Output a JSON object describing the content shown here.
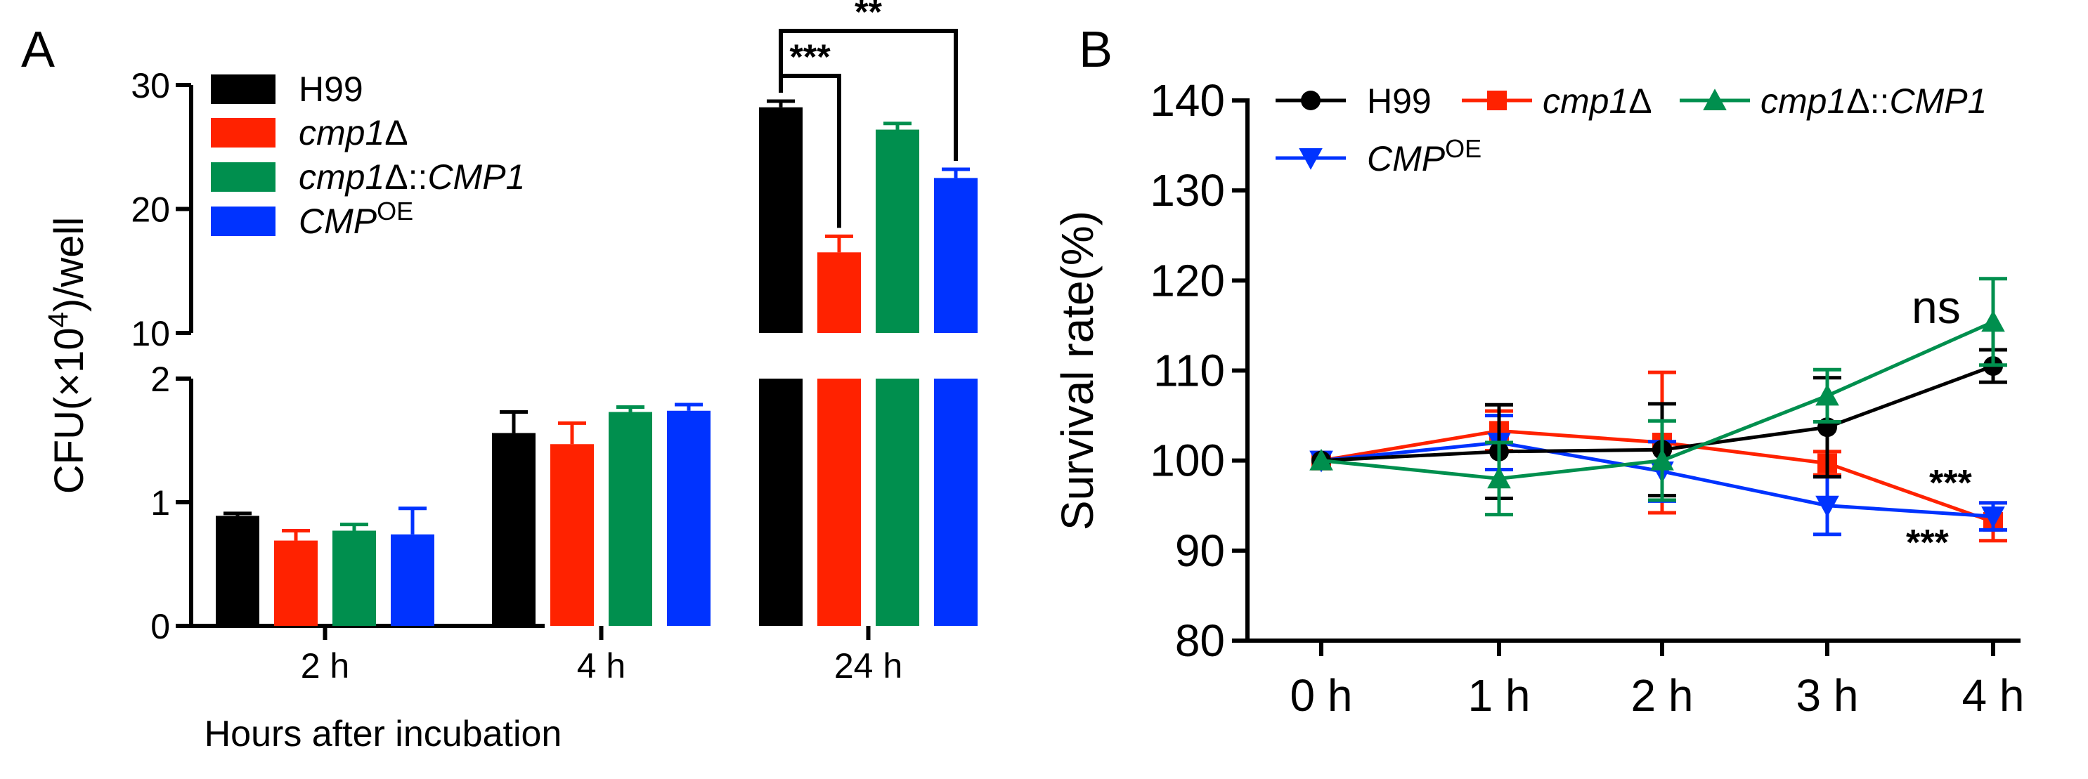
{
  "panel_labels": {
    "a": "A",
    "b": "B"
  },
  "colors": {
    "H99": "#000000",
    "cmp1d": "#ff2200",
    "cmp1d_CMP1": "#008f4e",
    "CMPOE": "#0033ff"
  },
  "chart_data": [
    {
      "type": "bar",
      "panel": "A",
      "xlabel": "Hours after incubation",
      "ylabel": {
        "pre": "CFU(×10",
        "sup": "4",
        "post": ")/well"
      },
      "categories": [
        "2 h",
        "4 h",
        "24 h"
      ],
      "axis_break": {
        "lower": [
          0,
          2
        ],
        "upper": [
          10,
          30
        ]
      },
      "yticks_lower": [
        "0",
        "1",
        "2"
      ],
      "yticks_upper": [
        "10",
        "20",
        "30"
      ],
      "legend": [
        {
          "key": "H99",
          "parts": [
            {
              "t": "H99",
              "i": false
            }
          ]
        },
        {
          "key": "cmp1d",
          "parts": [
            {
              "t": "cmp1",
              "i": true
            },
            {
              "t": "Δ",
              "i": false
            }
          ]
        },
        {
          "key": "cmp1d_CMP1",
          "parts": [
            {
              "t": "cmp1",
              "i": true
            },
            {
              "t": "Δ::",
              "i": false
            },
            {
              "t": "CMP1",
              "i": true
            }
          ]
        },
        {
          "key": "CMPOE",
          "parts": [
            {
              "t": "CMP",
              "i": true
            }
          ],
          "sup": "OE"
        }
      ],
      "series": [
        {
          "key": "H99",
          "values": [
            0.89,
            1.56,
            28.2
          ],
          "errors": [
            0.02,
            0.17,
            0.5
          ]
        },
        {
          "key": "cmp1d",
          "values": [
            0.69,
            1.47,
            16.5
          ],
          "errors": [
            0.08,
            0.17,
            1.3
          ]
        },
        {
          "key": "cmp1d_CMP1",
          "values": [
            0.77,
            1.73,
            26.4
          ],
          "errors": [
            0.05,
            0.04,
            0.5
          ]
        },
        {
          "key": "CMPOE",
          "values": [
            0.74,
            1.74,
            22.5
          ],
          "errors": [
            0.21,
            0.05,
            0.7
          ]
        }
      ],
      "significance": [
        {
          "label": "***",
          "color": "#ff2200",
          "from": "H99",
          "to": "cmp1d",
          "category": "24 h"
        },
        {
          "label": "**",
          "color": "#0033ff",
          "from": "H99",
          "to": "CMPOE",
          "category": "24 h"
        }
      ]
    },
    {
      "type": "line",
      "panel": "B",
      "ylabel": "Survival rate(%)",
      "x": [
        "0 h",
        "1 h",
        "2 h",
        "3 h",
        "4 h"
      ],
      "ylim": [
        80,
        140
      ],
      "yticks": [
        80,
        90,
        100,
        110,
        120,
        130,
        140
      ],
      "legend": [
        {
          "key": "H99",
          "marker": "circle",
          "parts": [
            {
              "t": "H99",
              "i": false
            }
          ]
        },
        {
          "key": "cmp1d",
          "marker": "square",
          "parts": [
            {
              "t": "cmp1",
              "i": true
            },
            {
              "t": "Δ",
              "i": false
            }
          ]
        },
        {
          "key": "cmp1d_CMP1",
          "marker": "triangle-up",
          "parts": [
            {
              "t": "cmp1",
              "i": true
            },
            {
              "t": "Δ::",
              "i": false
            },
            {
              "t": "CMP1",
              "i": true
            }
          ]
        },
        {
          "key": "CMPOE",
          "marker": "triangle-down",
          "parts": [
            {
              "t": "CMP",
              "i": true
            }
          ],
          "sup": "OE"
        }
      ],
      "series": [
        {
          "key": "H99",
          "marker": "circle",
          "values": [
            100,
            101,
            101.2,
            103.7,
            110.5
          ],
          "errors": [
            0,
            5.2,
            5.1,
            5.5,
            1.8
          ]
        },
        {
          "key": "cmp1d",
          "marker": "square",
          "values": [
            100,
            103.3,
            102.0,
            99.7,
            93.2
          ],
          "errors": [
            0,
            2.2,
            7.8,
            1.3,
            2.1
          ]
        },
        {
          "key": "cmp1d_CMP1",
          "marker": "triangle-up",
          "values": [
            100,
            98.0,
            100.0,
            107.2,
            115.4
          ],
          "errors": [
            0,
            4.0,
            4.4,
            2.9,
            4.8
          ]
        },
        {
          "key": "CMPOE",
          "marker": "triangle-down",
          "values": [
            100,
            102.0,
            98.8,
            95.0,
            93.8
          ],
          "errors": [
            0,
            3.0,
            3.3,
            3.2,
            1.5
          ]
        }
      ],
      "annotations": [
        {
          "text": "ns",
          "color": "#0033ff",
          "series": "cmp1d_CMP1"
        },
        {
          "text": "***",
          "color": "#008f4e",
          "series": "cmp1d"
        },
        {
          "text": "***",
          "color": "#ff2200",
          "series": "CMPOE"
        }
      ]
    }
  ]
}
